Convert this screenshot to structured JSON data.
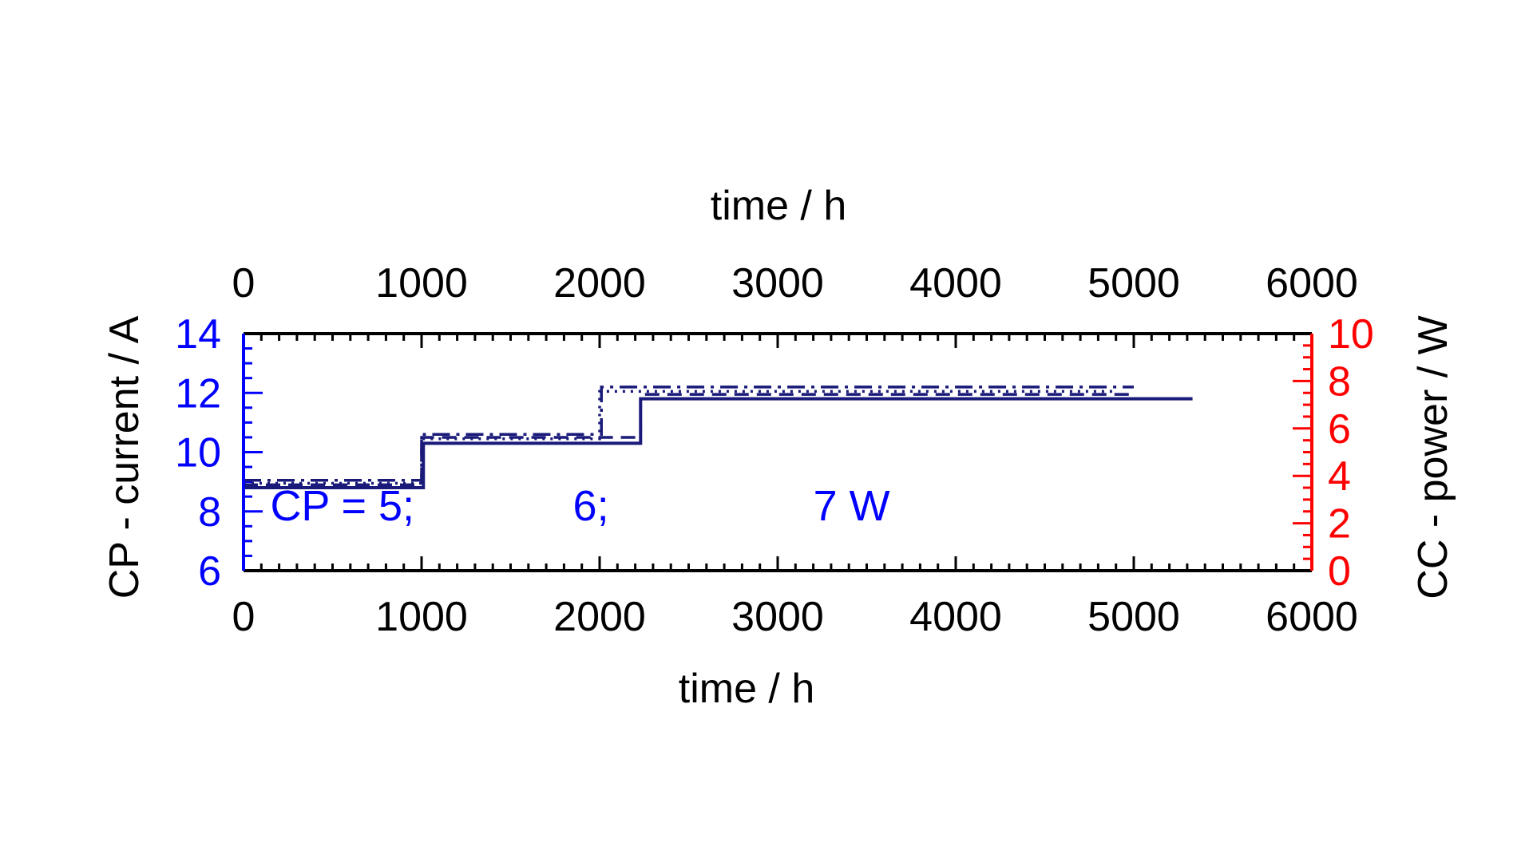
{
  "chart_data": {
    "type": "line",
    "x_top_label": "time / h",
    "x_bottom_label": "time / h",
    "y_left_label": "CP - current / A",
    "y_right_label": "CC - power / W",
    "xlim": [
      0,
      6000
    ],
    "x_ticks": [
      0,
      1000,
      2000,
      3000,
      4000,
      5000,
      6000
    ],
    "x_tick_labels": [
      "0",
      "1000",
      "2000",
      "3000",
      "4000",
      "5000",
      "6000"
    ],
    "y_left_lim": [
      6,
      14
    ],
    "y_left_ticks": [
      6,
      8,
      10,
      12,
      14
    ],
    "y_left_tick_labels": [
      "6",
      "8",
      "10",
      "12",
      "14"
    ],
    "y_right_lim": [
      0,
      10
    ],
    "y_right_ticks": [
      0,
      2,
      4,
      6,
      8,
      10
    ],
    "y_right_tick_labels": [
      "0",
      "2",
      "4",
      "6",
      "8",
      "10"
    ],
    "annotations": [
      {
        "text": "CP = 5;",
        "x": 150,
        "y": 7.7
      },
      {
        "text": "6;",
        "x": 1850,
        "y": 7.7
      },
      {
        "text": "7 W",
        "x": 3200,
        "y": 7.7
      }
    ],
    "series": [
      {
        "style": "solid",
        "axis": "left",
        "x": [
          0,
          1010,
          1010,
          2230,
          2230,
          5330
        ],
        "y": [
          8.8,
          8.8,
          10.3,
          10.3,
          11.8,
          11.8
        ]
      },
      {
        "style": "dash-dot",
        "axis": "left",
        "x": [
          0,
          1000,
          1000,
          2010,
          2010,
          5000
        ],
        "y": [
          9.05,
          9.05,
          10.6,
          10.6,
          12.2,
          12.2
        ]
      },
      {
        "style": "dashed",
        "axis": "left",
        "x": [
          0,
          1000,
          1000,
          2230,
          2230,
          5000
        ],
        "y": [
          8.9,
          8.9,
          10.5,
          10.5,
          11.95,
          11.95
        ]
      },
      {
        "style": "dotted",
        "axis": "left",
        "x": [
          0,
          1000,
          1000,
          2000,
          2000,
          4900
        ],
        "y": [
          8.95,
          8.95,
          10.45,
          10.45,
          12.05,
          12.05
        ]
      }
    ],
    "colors": {
      "series": "#1a1a7a",
      "left_axis": "#0000ff",
      "right_axis": "#ff0000",
      "annotation": "#0000ff",
      "frame": "#000000"
    }
  }
}
